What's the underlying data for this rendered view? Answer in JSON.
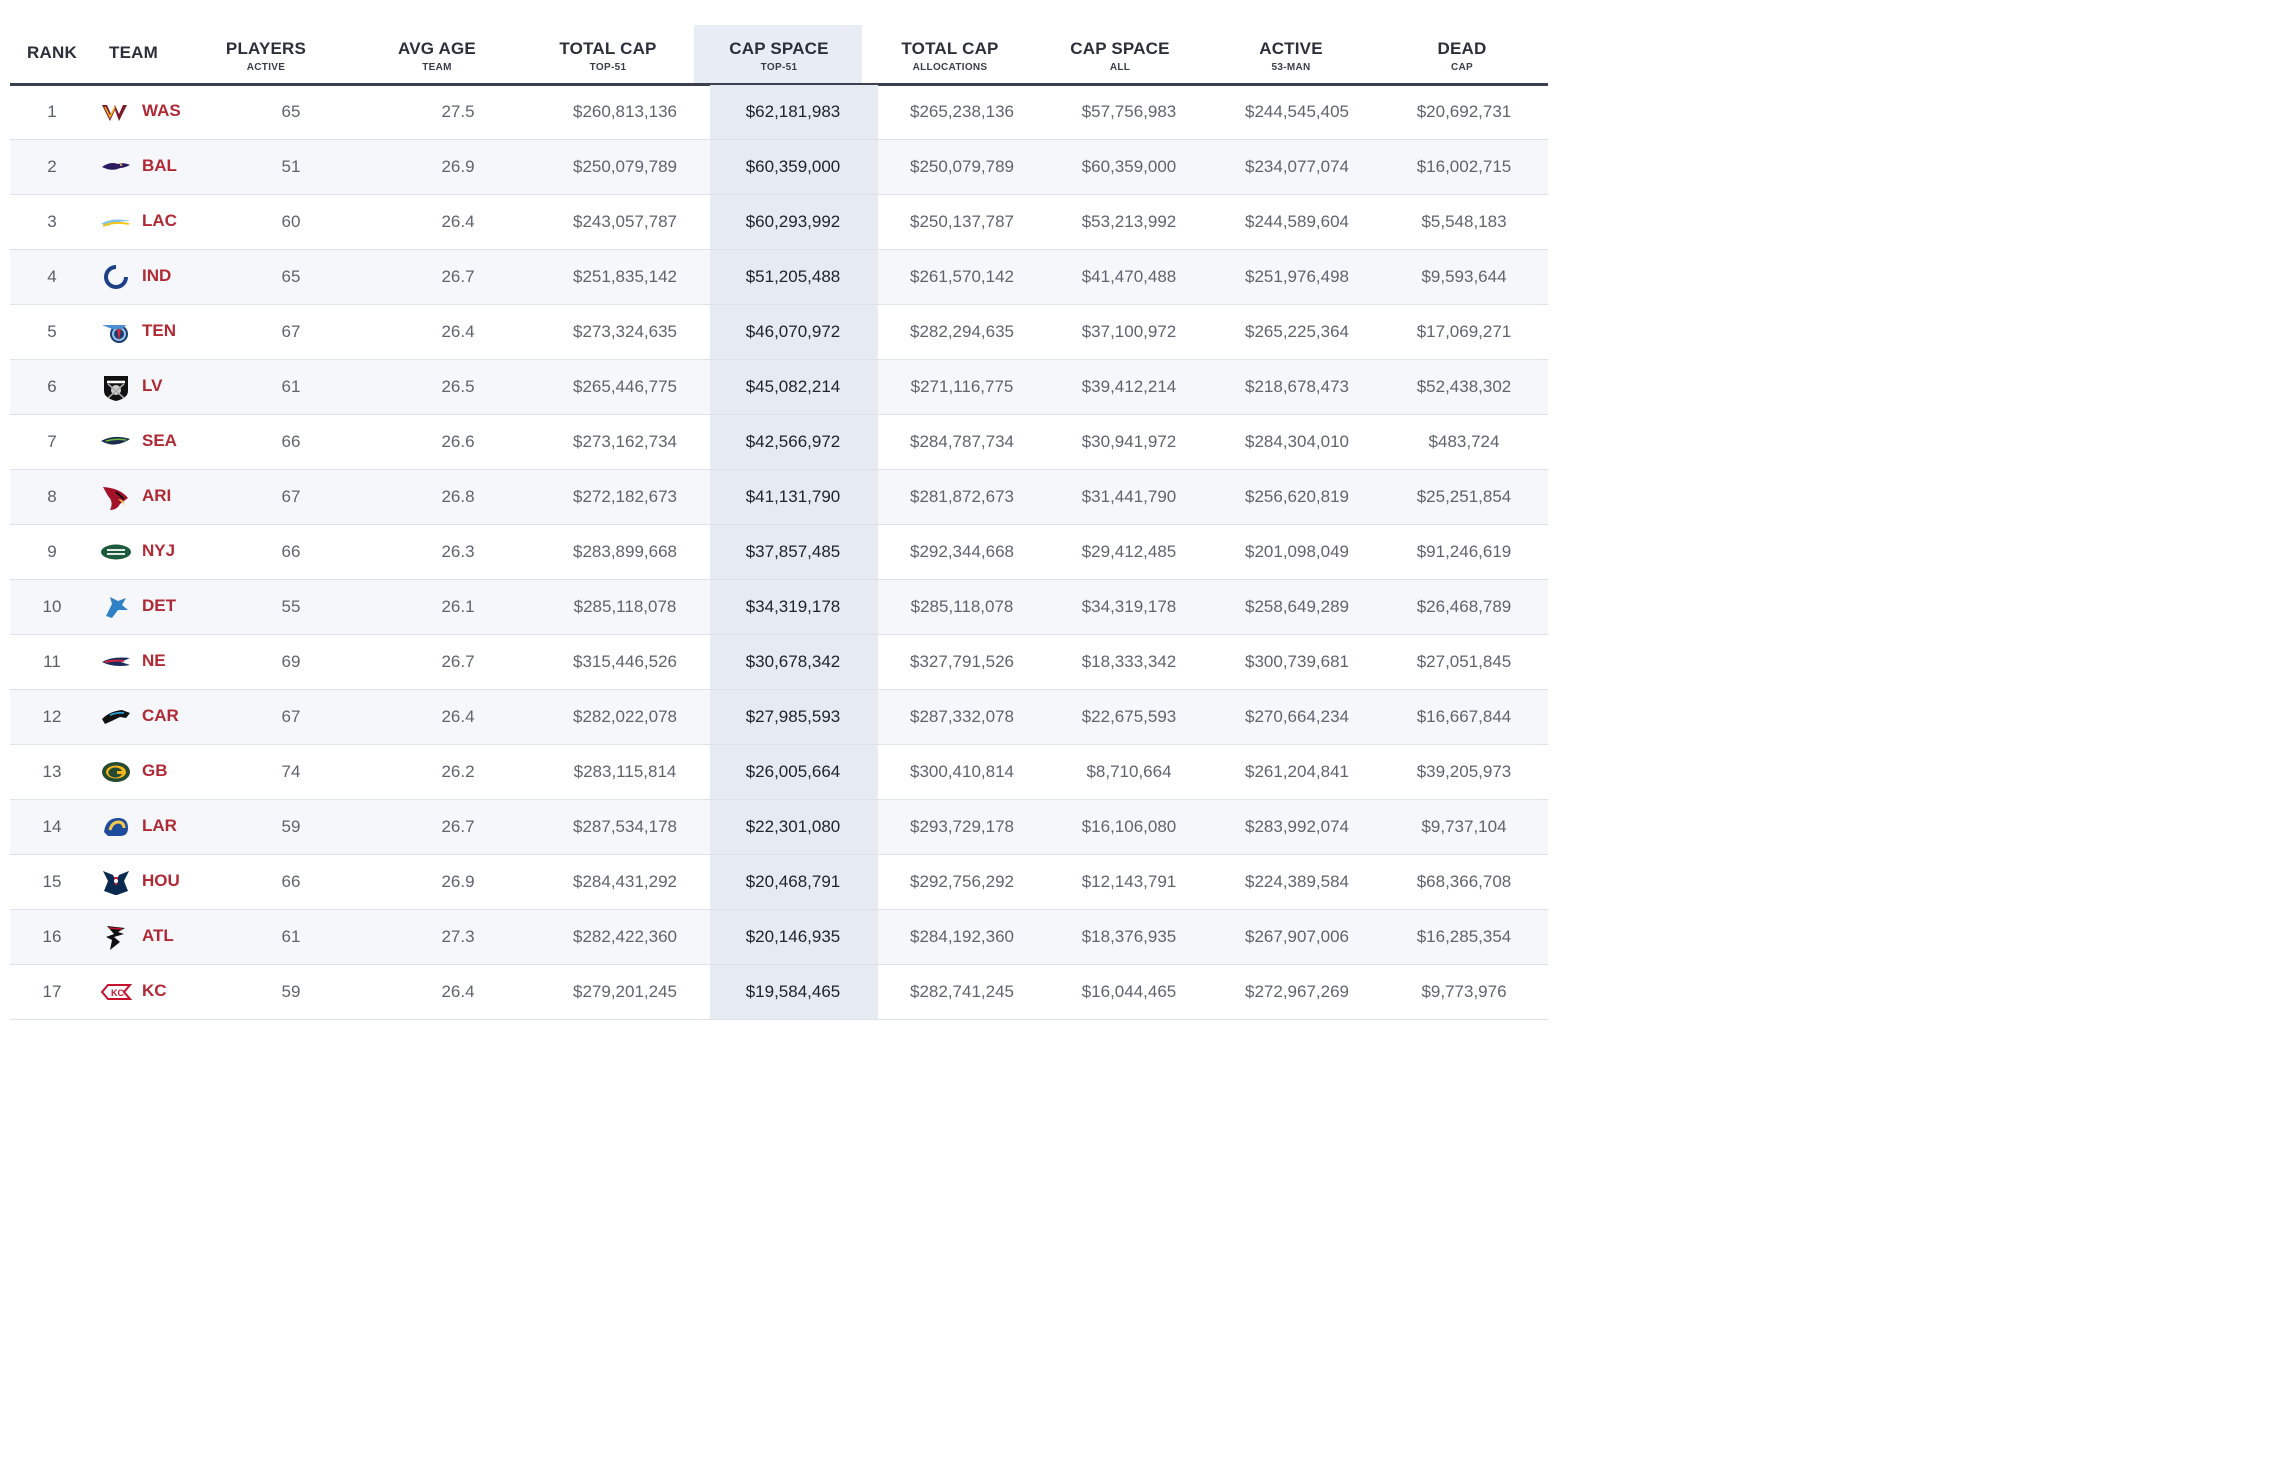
{
  "columns": [
    {
      "main": "RANK",
      "sub": ""
    },
    {
      "main": "TEAM",
      "sub": ""
    },
    {
      "main": "PLAYERS",
      "sub": "ACTIVE"
    },
    {
      "main": "AVG AGE",
      "sub": "TEAM"
    },
    {
      "main": "TOTAL CAP",
      "sub": "TOP-51"
    },
    {
      "main": "CAP SPACE",
      "sub": "TOP-51"
    },
    {
      "main": "TOTAL CAP",
      "sub": "ALLOCATIONS"
    },
    {
      "main": "CAP SPACE",
      "sub": "ALL"
    },
    {
      "main": "ACTIVE",
      "sub": "53-MAN"
    },
    {
      "main": "DEAD",
      "sub": "CAP"
    }
  ],
  "rows": [
    {
      "rank": "1",
      "team": "WAS",
      "logo": "commanders-logo",
      "players": "65",
      "age": "27.5",
      "total_cap": "$260,813,136",
      "cap_space": "$62,181,983",
      "total_alloc": "$265,238,136",
      "cap_space_all": "$57,756,983",
      "active": "$244,545,405",
      "dead": "$20,692,731"
    },
    {
      "rank": "2",
      "team": "BAL",
      "logo": "ravens-logo",
      "players": "51",
      "age": "26.9",
      "total_cap": "$250,079,789",
      "cap_space": "$60,359,000",
      "total_alloc": "$250,079,789",
      "cap_space_all": "$60,359,000",
      "active": "$234,077,074",
      "dead": "$16,002,715"
    },
    {
      "rank": "3",
      "team": "LAC",
      "logo": "chargers-logo",
      "players": "60",
      "age": "26.4",
      "total_cap": "$243,057,787",
      "cap_space": "$60,293,992",
      "total_alloc": "$250,137,787",
      "cap_space_all": "$53,213,992",
      "active": "$244,589,604",
      "dead": "$5,548,183"
    },
    {
      "rank": "4",
      "team": "IND",
      "logo": "colts-logo",
      "players": "65",
      "age": "26.7",
      "total_cap": "$251,835,142",
      "cap_space": "$51,205,488",
      "total_alloc": "$261,570,142",
      "cap_space_all": "$41,470,488",
      "active": "$251,976,498",
      "dead": "$9,593,644"
    },
    {
      "rank": "5",
      "team": "TEN",
      "logo": "titans-logo",
      "players": "67",
      "age": "26.4",
      "total_cap": "$273,324,635",
      "cap_space": "$46,070,972",
      "total_alloc": "$282,294,635",
      "cap_space_all": "$37,100,972",
      "active": "$265,225,364",
      "dead": "$17,069,271"
    },
    {
      "rank": "6",
      "team": "LV",
      "logo": "raiders-logo",
      "players": "61",
      "age": "26.5",
      "total_cap": "$265,446,775",
      "cap_space": "$45,082,214",
      "total_alloc": "$271,116,775",
      "cap_space_all": "$39,412,214",
      "active": "$218,678,473",
      "dead": "$52,438,302"
    },
    {
      "rank": "7",
      "team": "SEA",
      "logo": "seahawks-logo",
      "players": "66",
      "age": "26.6",
      "total_cap": "$273,162,734",
      "cap_space": "$42,566,972",
      "total_alloc": "$284,787,734",
      "cap_space_all": "$30,941,972",
      "active": "$284,304,010",
      "dead": "$483,724"
    },
    {
      "rank": "8",
      "team": "ARI",
      "logo": "cardinals-logo",
      "players": "67",
      "age": "26.8",
      "total_cap": "$272,182,673",
      "cap_space": "$41,131,790",
      "total_alloc": "$281,872,673",
      "cap_space_all": "$31,441,790",
      "active": "$256,620,819",
      "dead": "$25,251,854"
    },
    {
      "rank": "9",
      "team": "NYJ",
      "logo": "jets-logo",
      "players": "66",
      "age": "26.3",
      "total_cap": "$283,899,668",
      "cap_space": "$37,857,485",
      "total_alloc": "$292,344,668",
      "cap_space_all": "$29,412,485",
      "active": "$201,098,049",
      "dead": "$91,246,619"
    },
    {
      "rank": "10",
      "team": "DET",
      "logo": "lions-logo",
      "players": "55",
      "age": "26.1",
      "total_cap": "$285,118,078",
      "cap_space": "$34,319,178",
      "total_alloc": "$285,118,078",
      "cap_space_all": "$34,319,178",
      "active": "$258,649,289",
      "dead": "$26,468,789"
    },
    {
      "rank": "11",
      "team": "NE",
      "logo": "patriots-logo",
      "players": "69",
      "age": "26.7",
      "total_cap": "$315,446,526",
      "cap_space": "$30,678,342",
      "total_alloc": "$327,791,526",
      "cap_space_all": "$18,333,342",
      "active": "$300,739,681",
      "dead": "$27,051,845"
    },
    {
      "rank": "12",
      "team": "CAR",
      "logo": "panthers-logo",
      "players": "67",
      "age": "26.4",
      "total_cap": "$282,022,078",
      "cap_space": "$27,985,593",
      "total_alloc": "$287,332,078",
      "cap_space_all": "$22,675,593",
      "active": "$270,664,234",
      "dead": "$16,667,844"
    },
    {
      "rank": "13",
      "team": "GB",
      "logo": "packers-logo",
      "players": "74",
      "age": "26.2",
      "total_cap": "$283,115,814",
      "cap_space": "$26,005,664",
      "total_alloc": "$300,410,814",
      "cap_space_all": "$8,710,664",
      "active": "$261,204,841",
      "dead": "$39,205,973"
    },
    {
      "rank": "14",
      "team": "LAR",
      "logo": "rams-logo",
      "players": "59",
      "age": "26.7",
      "total_cap": "$287,534,178",
      "cap_space": "$22,301,080",
      "total_alloc": "$293,729,178",
      "cap_space_all": "$16,106,080",
      "active": "$283,992,074",
      "dead": "$9,737,104"
    },
    {
      "rank": "15",
      "team": "HOU",
      "logo": "texans-logo",
      "players": "66",
      "age": "26.9",
      "total_cap": "$284,431,292",
      "cap_space": "$20,468,791",
      "total_alloc": "$292,756,292",
      "cap_space_all": "$12,143,791",
      "active": "$224,389,584",
      "dead": "$68,366,708"
    },
    {
      "rank": "16",
      "team": "ATL",
      "logo": "falcons-logo",
      "players": "61",
      "age": "27.3",
      "total_cap": "$282,422,360",
      "cap_space": "$20,146,935",
      "total_alloc": "$284,192,360",
      "cap_space_all": "$18,376,935",
      "active": "$267,907,006",
      "dead": "$16,285,354"
    },
    {
      "rank": "17",
      "team": "KC",
      "logo": "chiefs-logo",
      "players": "59",
      "age": "26.4",
      "total_cap": "$279,201,245",
      "cap_space": "$19,584,465",
      "total_alloc": "$282,741,245",
      "cap_space_all": "$16,044,465",
      "active": "$272,967,269",
      "dead": "$9,773,976"
    }
  ]
}
